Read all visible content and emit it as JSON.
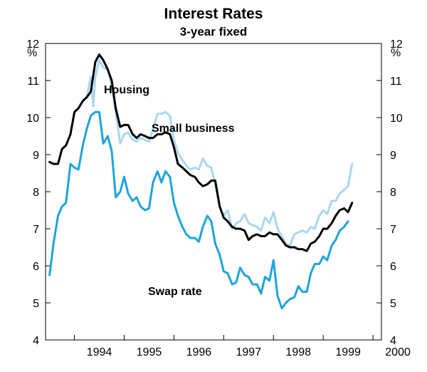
{
  "chart_data": {
    "type": "line",
    "title": "Interest Rates",
    "subtitle": "3-year fixed",
    "ylabel": "%",
    "ylim": [
      4,
      12
    ],
    "y_ticks": [
      4,
      5,
      6,
      7,
      8,
      9,
      10,
      11,
      12
    ],
    "xlim": [
      1993.42,
      2000.17
    ],
    "x_tick_labels": [
      "1994",
      "1995",
      "1996",
      "1997",
      "1998",
      "1999",
      "2000"
    ],
    "grid": false,
    "series": [
      {
        "name": "Housing",
        "color": "#000000",
        "points": [
          [
            1993.5,
            8.8
          ],
          [
            1993.58,
            8.75
          ],
          [
            1993.67,
            8.75
          ],
          [
            1993.75,
            9.15
          ],
          [
            1993.83,
            9.25
          ],
          [
            1993.92,
            9.55
          ],
          [
            1994.0,
            10.15
          ],
          [
            1994.08,
            10.25
          ],
          [
            1994.17,
            10.45
          ],
          [
            1994.25,
            10.55
          ],
          [
            1994.33,
            10.7
          ],
          [
            1994.42,
            11.5
          ],
          [
            1994.5,
            11.7
          ],
          [
            1994.58,
            11.55
          ],
          [
            1994.67,
            11.3
          ],
          [
            1994.75,
            11.0
          ],
          [
            1994.83,
            10.25
          ],
          [
            1994.92,
            9.75
          ],
          [
            1995.0,
            9.8
          ],
          [
            1995.08,
            9.8
          ],
          [
            1995.17,
            9.55
          ],
          [
            1995.25,
            9.45
          ],
          [
            1995.33,
            9.55
          ],
          [
            1995.42,
            9.5
          ],
          [
            1995.5,
            9.45
          ],
          [
            1995.58,
            9.45
          ],
          [
            1995.67,
            9.55
          ],
          [
            1995.75,
            9.55
          ],
          [
            1995.83,
            9.6
          ],
          [
            1995.92,
            9.55
          ],
          [
            1996.0,
            9.2
          ],
          [
            1996.08,
            8.75
          ],
          [
            1996.17,
            8.65
          ],
          [
            1996.25,
            8.55
          ],
          [
            1996.33,
            8.45
          ],
          [
            1996.42,
            8.4
          ],
          [
            1996.5,
            8.25
          ],
          [
            1996.58,
            8.15
          ],
          [
            1996.67,
            8.2
          ],
          [
            1996.75,
            8.3
          ],
          [
            1996.83,
            8.3
          ],
          [
            1996.92,
            7.6
          ],
          [
            1997.0,
            7.3
          ],
          [
            1997.08,
            7.2
          ],
          [
            1997.17,
            7.05
          ],
          [
            1997.25,
            7.0
          ],
          [
            1997.33,
            7.0
          ],
          [
            1997.42,
            6.95
          ],
          [
            1997.5,
            6.7
          ],
          [
            1997.58,
            6.8
          ],
          [
            1997.67,
            6.85
          ],
          [
            1997.75,
            6.8
          ],
          [
            1997.83,
            6.8
          ],
          [
            1997.92,
            6.9
          ],
          [
            1998.0,
            6.85
          ],
          [
            1998.08,
            6.85
          ],
          [
            1998.17,
            6.7
          ],
          [
            1998.25,
            6.55
          ],
          [
            1998.33,
            6.5
          ],
          [
            1998.42,
            6.5
          ],
          [
            1998.5,
            6.45
          ],
          [
            1998.58,
            6.45
          ],
          [
            1998.67,
            6.4
          ],
          [
            1998.75,
            6.6
          ],
          [
            1998.83,
            6.65
          ],
          [
            1998.92,
            6.8
          ],
          [
            1999.0,
            7.0
          ],
          [
            1999.08,
            7.0
          ],
          [
            1999.17,
            7.15
          ],
          [
            1999.25,
            7.35
          ],
          [
            1999.33,
            7.5
          ],
          [
            1999.42,
            7.55
          ],
          [
            1999.5,
            7.45
          ],
          [
            1999.58,
            7.7
          ]
        ]
      },
      {
        "name": "Small business",
        "color": "#a8d8f0",
        "points": [
          [
            1994.25,
            10.55
          ],
          [
            1994.33,
            11.1
          ],
          [
            1994.38,
            10.3
          ],
          [
            1994.42,
            11.1
          ],
          [
            1994.5,
            11.55
          ],
          [
            1994.58,
            11.35
          ],
          [
            1994.67,
            11.3
          ],
          [
            1994.75,
            10.85
          ],
          [
            1994.83,
            10.15
          ],
          [
            1994.92,
            9.3
          ],
          [
            1995.0,
            9.55
          ],
          [
            1995.08,
            9.6
          ],
          [
            1995.17,
            9.4
          ],
          [
            1995.25,
            9.35
          ],
          [
            1995.33,
            9.45
          ],
          [
            1995.42,
            9.4
          ],
          [
            1995.5,
            9.35
          ],
          [
            1995.58,
            9.7
          ],
          [
            1995.67,
            10.1
          ],
          [
            1995.75,
            10.1
          ],
          [
            1995.83,
            10.15
          ],
          [
            1995.92,
            10.05
          ],
          [
            1996.0,
            9.4
          ],
          [
            1996.08,
            9.05
          ],
          [
            1996.17,
            8.85
          ],
          [
            1996.25,
            8.7
          ],
          [
            1996.33,
            8.6
          ],
          [
            1996.42,
            8.65
          ],
          [
            1996.5,
            8.6
          ],
          [
            1996.58,
            8.9
          ],
          [
            1996.67,
            8.7
          ],
          [
            1996.75,
            8.65
          ],
          [
            1996.83,
            8.2
          ],
          [
            1996.92,
            7.6
          ],
          [
            1997.0,
            7.35
          ],
          [
            1997.08,
            7.5
          ],
          [
            1997.17,
            7.0
          ],
          [
            1997.25,
            7.15
          ],
          [
            1997.33,
            7.2
          ],
          [
            1997.42,
            7.4
          ],
          [
            1997.5,
            7.15
          ],
          [
            1997.58,
            7.1
          ],
          [
            1997.67,
            7.05
          ],
          [
            1997.75,
            6.95
          ],
          [
            1997.83,
            7.3
          ],
          [
            1997.92,
            7.15
          ],
          [
            1998.0,
            7.45
          ],
          [
            1998.08,
            7.0
          ],
          [
            1998.17,
            6.8
          ],
          [
            1998.25,
            6.6
          ],
          [
            1998.33,
            6.55
          ],
          [
            1998.42,
            6.85
          ],
          [
            1998.5,
            6.9
          ],
          [
            1998.58,
            6.95
          ],
          [
            1998.67,
            6.9
          ],
          [
            1998.75,
            7.05
          ],
          [
            1998.83,
            7.0
          ],
          [
            1998.92,
            7.35
          ],
          [
            1999.0,
            7.5
          ],
          [
            1999.08,
            7.4
          ],
          [
            1999.17,
            7.75
          ],
          [
            1999.25,
            7.75
          ],
          [
            1999.33,
            7.95
          ],
          [
            1999.42,
            8.05
          ],
          [
            1999.5,
            8.15
          ],
          [
            1999.58,
            8.75
          ]
        ]
      },
      {
        "name": "Swap rate",
        "color": "#1ea4dc",
        "points": [
          [
            1993.5,
            5.75
          ],
          [
            1993.58,
            6.6
          ],
          [
            1993.67,
            7.35
          ],
          [
            1993.75,
            7.6
          ],
          [
            1993.83,
            7.7
          ],
          [
            1993.92,
            8.75
          ],
          [
            1994.0,
            8.65
          ],
          [
            1994.08,
            8.6
          ],
          [
            1994.17,
            9.25
          ],
          [
            1994.25,
            9.7
          ],
          [
            1994.33,
            10.05
          ],
          [
            1994.42,
            10.15
          ],
          [
            1994.5,
            10.15
          ],
          [
            1994.58,
            9.3
          ],
          [
            1994.67,
            9.5
          ],
          [
            1994.75,
            9.1
          ],
          [
            1994.83,
            7.85
          ],
          [
            1994.92,
            8.0
          ],
          [
            1995.0,
            8.4
          ],
          [
            1995.08,
            7.95
          ],
          [
            1995.17,
            7.75
          ],
          [
            1995.25,
            7.85
          ],
          [
            1995.33,
            7.6
          ],
          [
            1995.42,
            7.5
          ],
          [
            1995.5,
            7.55
          ],
          [
            1995.58,
            8.25
          ],
          [
            1995.67,
            8.55
          ],
          [
            1995.75,
            8.25
          ],
          [
            1995.83,
            8.55
          ],
          [
            1995.92,
            8.4
          ],
          [
            1996.0,
            7.7
          ],
          [
            1996.08,
            7.35
          ],
          [
            1996.17,
            7.05
          ],
          [
            1996.25,
            6.85
          ],
          [
            1996.33,
            6.75
          ],
          [
            1996.42,
            6.75
          ],
          [
            1996.5,
            6.65
          ],
          [
            1996.58,
            7.05
          ],
          [
            1996.67,
            7.35
          ],
          [
            1996.75,
            7.2
          ],
          [
            1996.83,
            6.6
          ],
          [
            1996.92,
            6.3
          ],
          [
            1997.0,
            5.85
          ],
          [
            1997.08,
            5.8
          ],
          [
            1997.17,
            5.5
          ],
          [
            1997.25,
            5.55
          ],
          [
            1997.33,
            5.95
          ],
          [
            1997.42,
            5.75
          ],
          [
            1997.5,
            5.7
          ],
          [
            1997.58,
            5.5
          ],
          [
            1997.67,
            5.5
          ],
          [
            1997.75,
            5.25
          ],
          [
            1997.83,
            5.7
          ],
          [
            1997.92,
            5.6
          ],
          [
            1998.0,
            6.15
          ],
          [
            1998.08,
            5.2
          ],
          [
            1998.17,
            4.85
          ],
          [
            1998.25,
            5.0
          ],
          [
            1998.33,
            5.1
          ],
          [
            1998.42,
            5.15
          ],
          [
            1998.5,
            5.45
          ],
          [
            1998.58,
            5.3
          ],
          [
            1998.67,
            5.3
          ],
          [
            1998.75,
            5.8
          ],
          [
            1998.83,
            6.05
          ],
          [
            1998.92,
            6.05
          ],
          [
            1999.0,
            6.25
          ],
          [
            1999.08,
            6.15
          ],
          [
            1999.17,
            6.55
          ],
          [
            1999.25,
            6.7
          ],
          [
            1999.33,
            6.95
          ],
          [
            1999.42,
            7.05
          ],
          [
            1999.5,
            7.2
          ]
        ]
      }
    ]
  }
}
